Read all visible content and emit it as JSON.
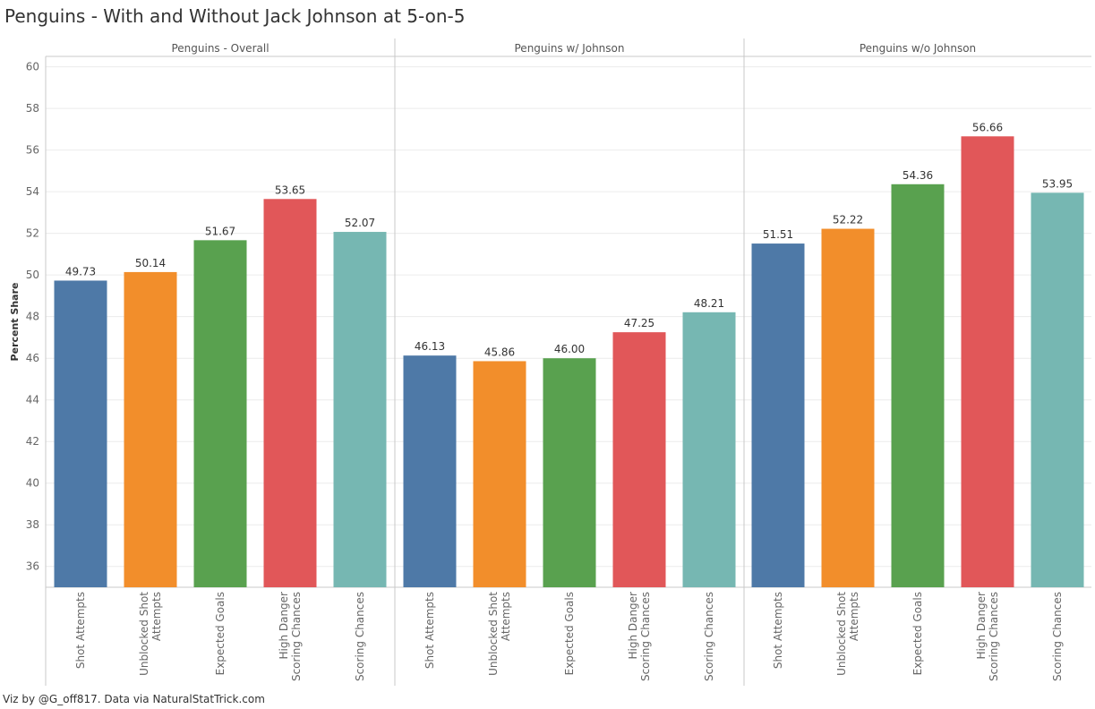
{
  "title": "Penguins - With and Without Jack Johnson at 5-on-5",
  "footer": "Viz by @G_off817.  Data via NaturalStatTrick.com",
  "colors": {
    "Shot Attempts": "#4e79a7",
    "Unblocked Shot Attempts": "#f28e2b",
    "Expected Goals": "#59a14f",
    "High Danger Scoring Chances": "#e15759",
    "Scoring Chances": "#76b7b2"
  },
  "chart_data": {
    "type": "bar",
    "title": "Penguins - With and Without Jack Johnson at 5-on-5",
    "ylabel": "Percent Share",
    "ylim": [
      35,
      60.5
    ],
    "yticks": [
      36,
      38,
      40,
      42,
      44,
      46,
      48,
      50,
      52,
      54,
      56,
      58,
      60
    ],
    "grid": true,
    "categories": [
      "Shot Attempts",
      "Unblocked Shot Attempts",
      "Expected Goals",
      "High Danger Scoring Chances",
      "Scoring Chances"
    ],
    "category_labels": [
      [
        "Shot Attempts"
      ],
      [
        "Unblocked Shot",
        "Attempts"
      ],
      [
        "Expected Goals"
      ],
      [
        "High Danger",
        "Scoring Chances"
      ],
      [
        "Scoring Chances"
      ]
    ],
    "panels": [
      {
        "name": "Penguins - Overall",
        "values": [
          49.73,
          50.14,
          51.67,
          53.65,
          52.07
        ],
        "labels": [
          "49.73",
          "50.14",
          "51.67",
          "53.65",
          "52.07"
        ]
      },
      {
        "name": "Penguins w/ Johnson",
        "values": [
          46.13,
          45.86,
          46.0,
          47.25,
          48.21
        ],
        "labels": [
          "46.13",
          "45.86",
          "46.00",
          "47.25",
          "48.21"
        ]
      },
      {
        "name": "Penguins w/o Johnson",
        "values": [
          51.51,
          52.22,
          54.36,
          56.66,
          53.95
        ],
        "labels": [
          "51.51",
          "52.22",
          "54.36",
          "56.66",
          "53.95"
        ]
      }
    ]
  }
}
